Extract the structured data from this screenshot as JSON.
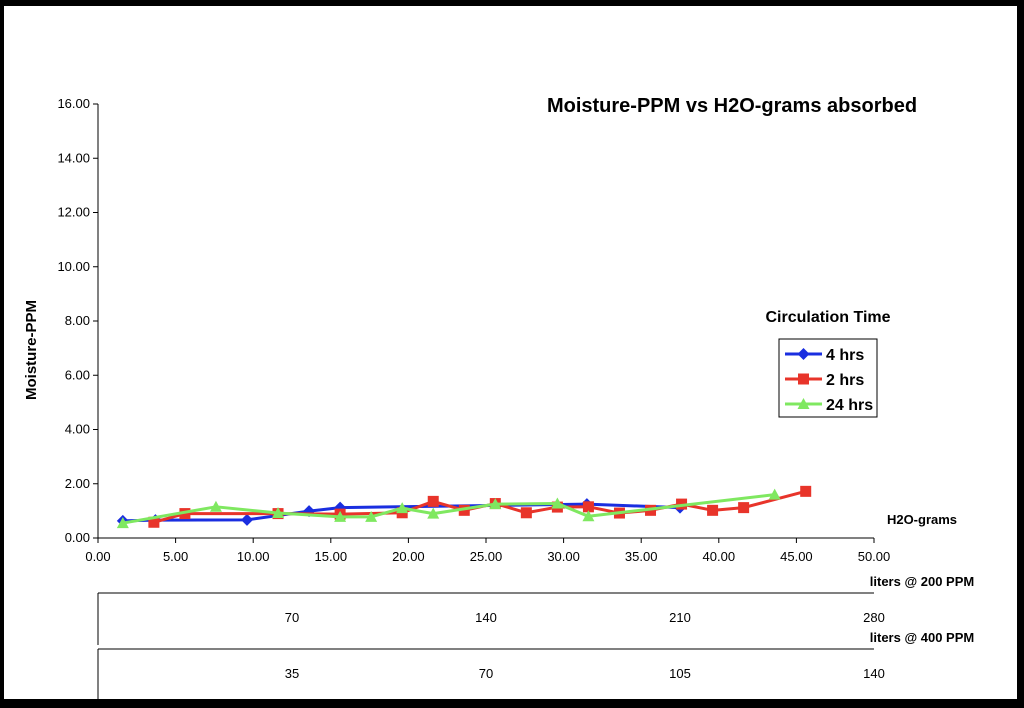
{
  "chart_data": {
    "type": "line",
    "title": "Moisture-PPM vs H2O-grams absorbed",
    "ylabel": "Moisture-PPM",
    "xlabel": "H2O-grams",
    "xlim": [
      0,
      50
    ],
    "ylim": [
      0,
      16
    ],
    "x_ticks": [
      "0.00",
      "5.00",
      "10.00",
      "15.00",
      "20.00",
      "25.00",
      "30.00",
      "35.00",
      "40.00",
      "45.00",
      "50.00"
    ],
    "y_ticks": [
      "0.00",
      "2.00",
      "4.00",
      "6.00",
      "8.00",
      "10.00",
      "12.00",
      "14.00",
      "16.00"
    ],
    "grid": false,
    "legend": {
      "title": "Circulation Time",
      "position": "right"
    },
    "series": [
      {
        "name": "4 hrs",
        "color": "#1a2ee0",
        "marker": "diamond",
        "points": [
          [
            1.6,
            0.63
          ],
          [
            3.7,
            0.66
          ],
          [
            9.6,
            0.67
          ],
          [
            13.6,
            0.99
          ],
          [
            15.6,
            1.12
          ],
          [
            31.5,
            1.25
          ],
          [
            37.5,
            1.12
          ]
        ]
      },
      {
        "name": "2 hrs",
        "color": "#e8342a",
        "marker": "square",
        "points": [
          [
            3.6,
            0.58
          ],
          [
            5.6,
            0.9
          ],
          [
            11.6,
            0.9
          ],
          [
            15.6,
            0.88
          ],
          [
            19.6,
            0.93
          ],
          [
            21.6,
            1.35
          ],
          [
            23.6,
            1.02
          ],
          [
            25.6,
            1.27
          ],
          [
            27.6,
            0.93
          ],
          [
            29.6,
            1.14
          ],
          [
            31.6,
            1.15
          ],
          [
            33.6,
            0.92
          ],
          [
            35.6,
            1.02
          ],
          [
            37.6,
            1.25
          ],
          [
            39.6,
            1.02
          ],
          [
            41.6,
            1.12
          ],
          [
            45.6,
            1.72
          ]
        ]
      },
      {
        "name": "24 hrs",
        "color": "#7fe860",
        "marker": "triangle",
        "points": [
          [
            1.6,
            0.55
          ],
          [
            7.6,
            1.15
          ],
          [
            11.6,
            0.92
          ],
          [
            15.6,
            0.78
          ],
          [
            17.6,
            0.78
          ],
          [
            19.6,
            1.1
          ],
          [
            21.6,
            0.9
          ],
          [
            25.6,
            1.25
          ],
          [
            29.6,
            1.27
          ],
          [
            31.6,
            0.8
          ],
          [
            43.6,
            1.6
          ]
        ]
      }
    ],
    "secondary_axes": [
      {
        "label": "liters @ 200 PPM",
        "ticks": [
          "70",
          "140",
          "210",
          "280"
        ],
        "values": [
          70,
          140,
          210,
          280
        ],
        "max": 280
      },
      {
        "label": "liters @ 400 PPM",
        "ticks": [
          "35",
          "70",
          "105",
          "140"
        ],
        "values": [
          35,
          70,
          105,
          140
        ],
        "max": 140
      }
    ]
  }
}
